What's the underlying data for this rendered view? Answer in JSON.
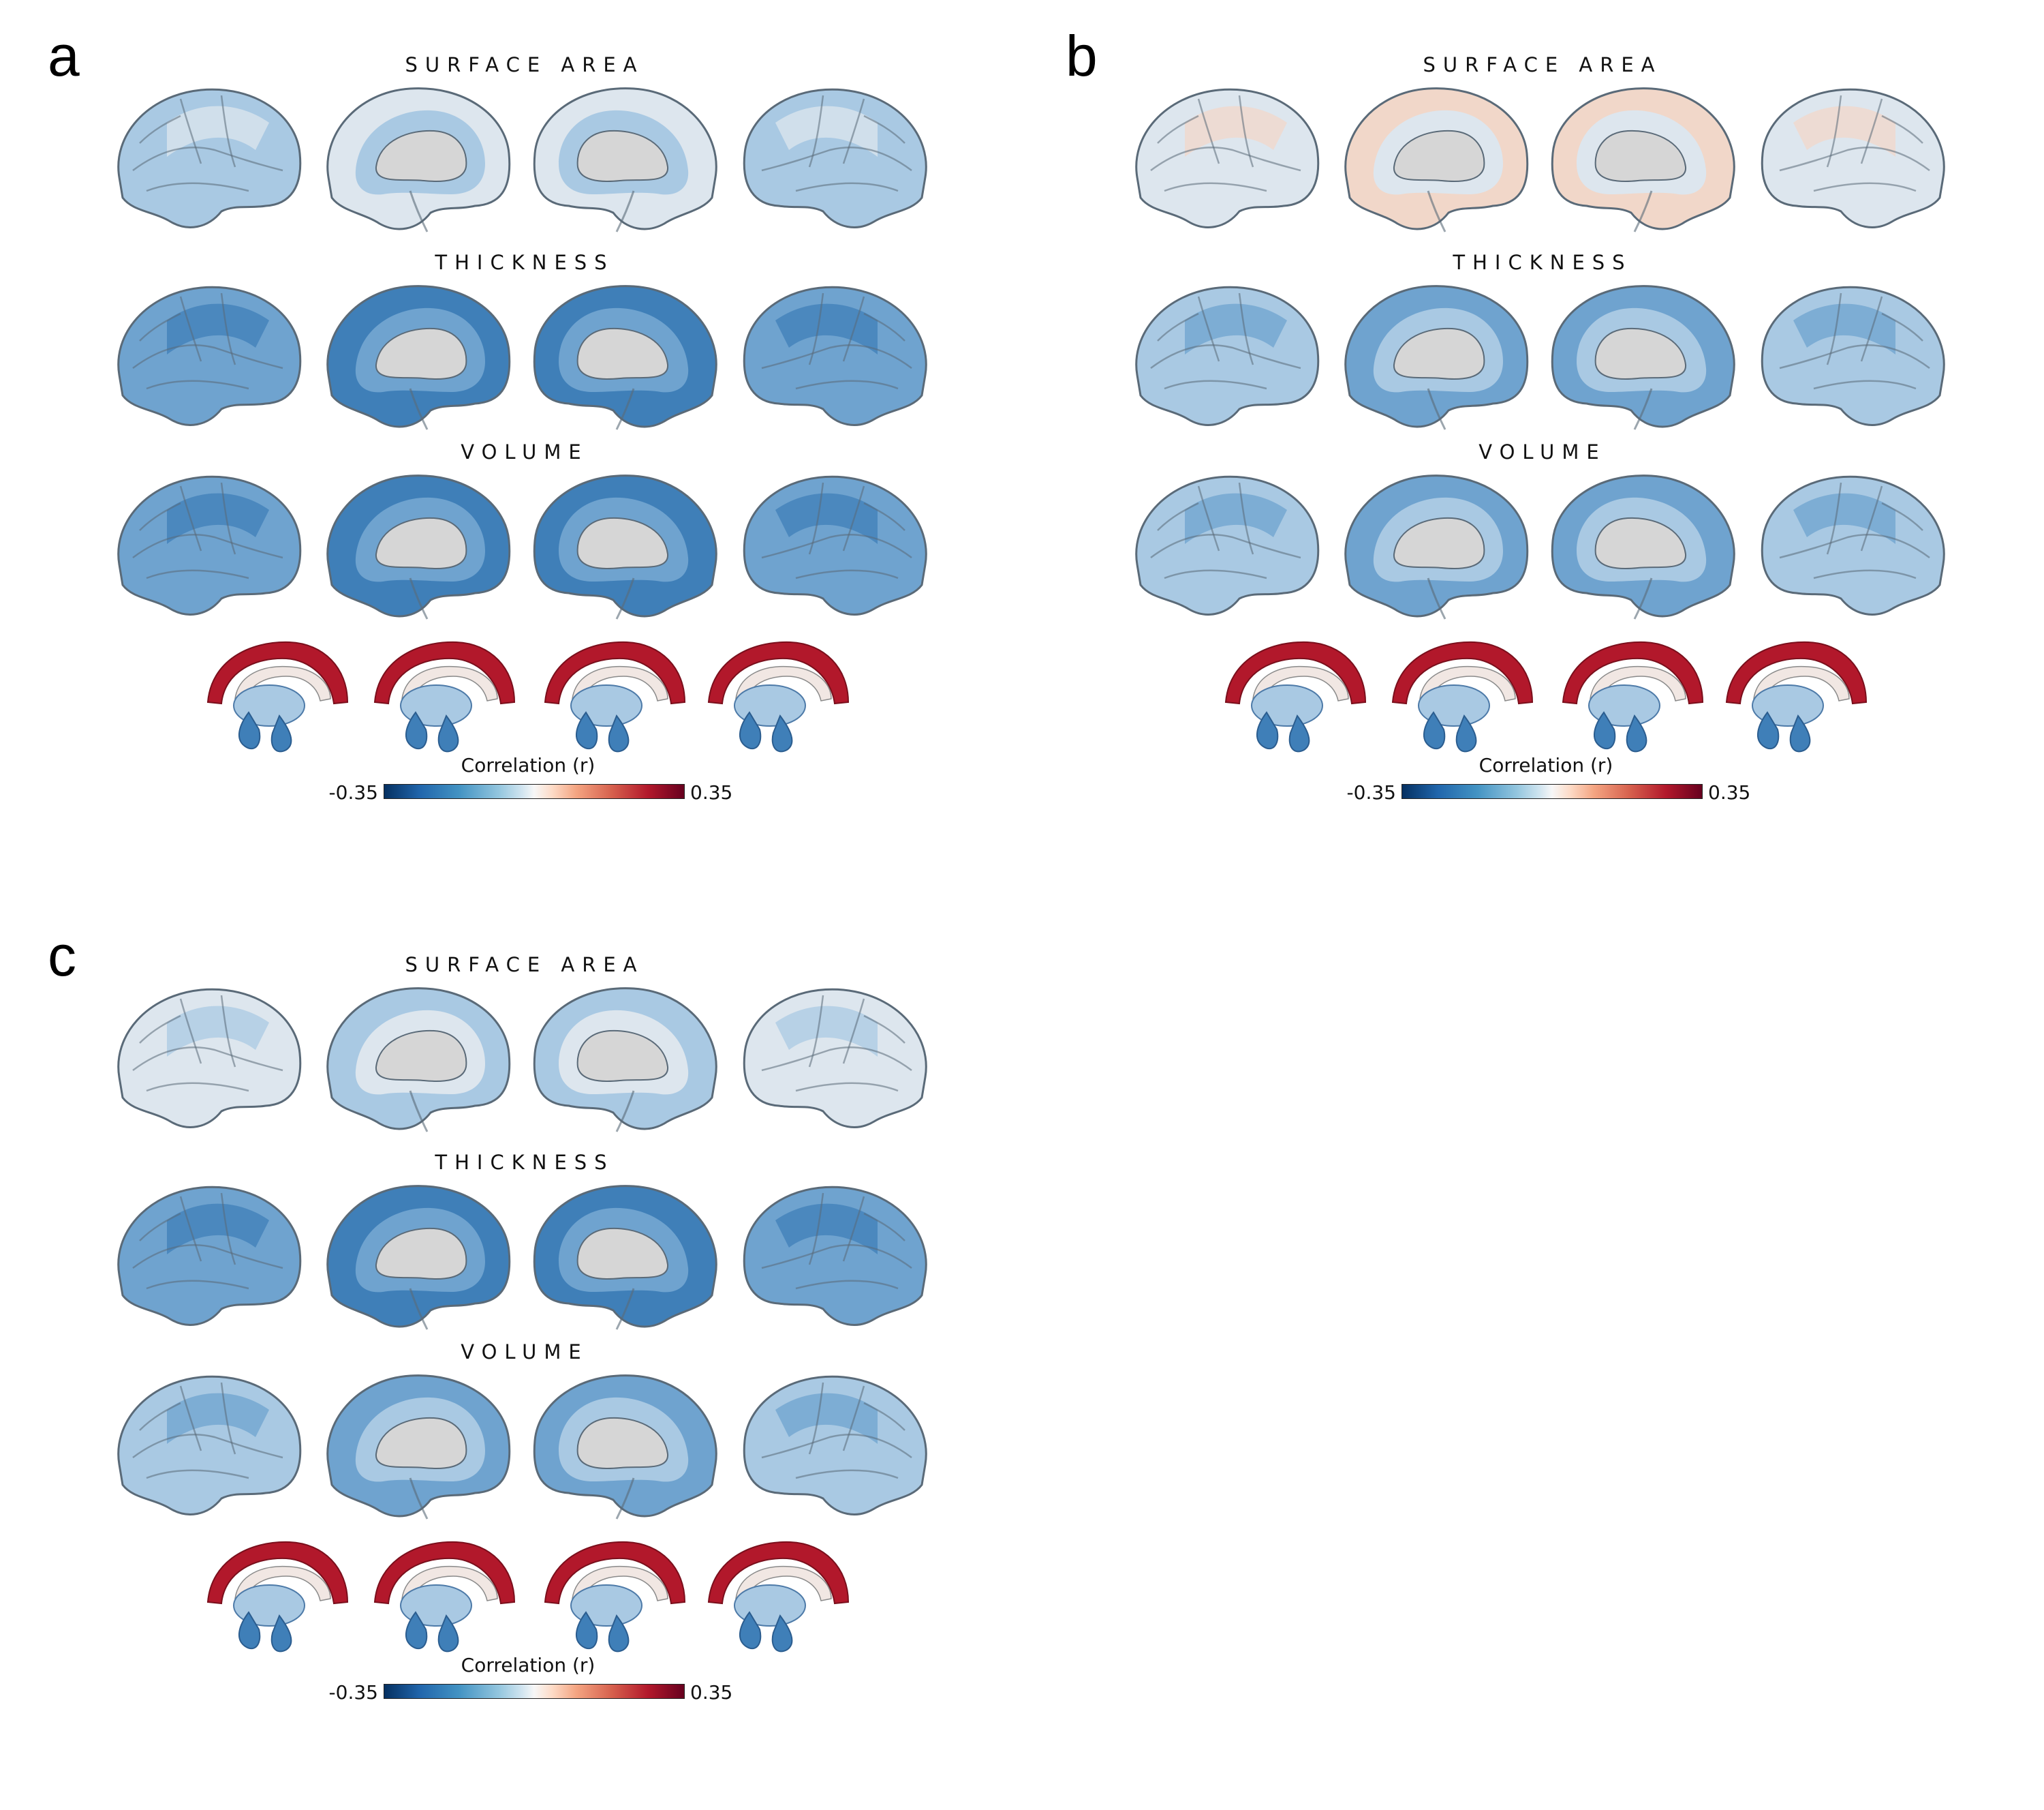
{
  "figure": {
    "panels": [
      {
        "letter": "a",
        "rows": [
          "SURFACE AREA",
          "THICKNESS",
          "VOLUME"
        ],
        "colorbar": {
          "label": "Correlation (r)",
          "min": "-0.35",
          "max": "0.35"
        }
      },
      {
        "letter": "b",
        "rows": [
          "SURFACE AREA",
          "THICKNESS",
          "VOLUME"
        ],
        "colorbar": {
          "label": "Correlation (r)",
          "min": "-0.35",
          "max": "0.35"
        }
      },
      {
        "letter": "c",
        "rows": [
          "SURFACE AREA",
          "THICKNESS",
          "VOLUME"
        ],
        "colorbar": {
          "label": "Correlation (r)",
          "min": "-0.35",
          "max": "0.35"
        }
      }
    ],
    "colormap": [
      "#053061",
      "#2166ac",
      "#4393c3",
      "#92c5de",
      "#d1e5f0",
      "#f7f7f7",
      "#fddbc7",
      "#f4a582",
      "#d6604d",
      "#b2182b",
      "#67001f"
    ],
    "colors": {
      "strong_neg": "#3f7fb8",
      "mid_neg": "#6fa3cf",
      "light_neg": "#a9c9e3",
      "near_zero": "#dde6ee",
      "neutral_gray": "#d6d6d6",
      "light_pos": "#f1d7c9",
      "strong_pos": "#b2182b",
      "outline": "#5a6a78"
    }
  }
}
